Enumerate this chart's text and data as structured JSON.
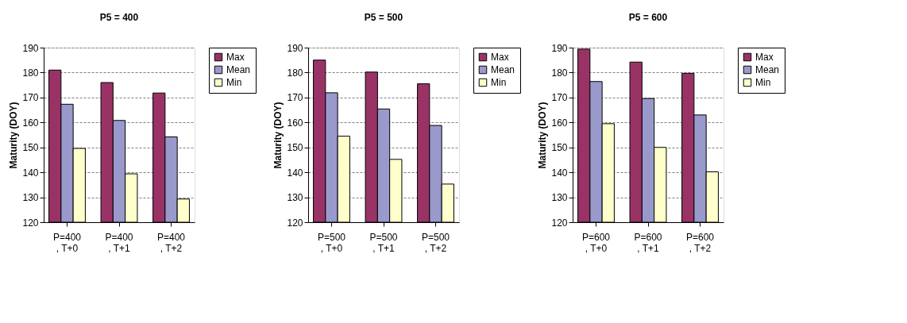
{
  "chart_data": [
    {
      "type": "bar",
      "title": "P5 = 400",
      "ylabel": "Maturity (DOY)",
      "categories": [
        "P=400 , T+0",
        "P=400 , T+1",
        "P=400 , T+2"
      ],
      "series": [
        {
          "name": "Max",
          "color": "#993366",
          "values": [
            181,
            176,
            171.8
          ]
        },
        {
          "name": "Mean",
          "color": "#9999cc",
          "values": [
            167.3,
            160.8,
            154.2
          ]
        },
        {
          "name": "Min",
          "color": "#ffffcc",
          "values": [
            149.6,
            139.4,
            129.3
          ]
        }
      ],
      "ylim": [
        120,
        190
      ],
      "yticks": [
        120,
        130,
        140,
        150,
        160,
        170,
        180,
        190
      ],
      "grid": "y",
      "legend": "right"
    },
    {
      "type": "bar",
      "title": "P5 = 500",
      "ylabel": "Maturity (DOY)",
      "categories": [
        "P=500 , T+0",
        "P=500 , T+1",
        "P=500 , T+2"
      ],
      "series": [
        {
          "name": "Max",
          "color": "#993366",
          "values": [
            185,
            180.2,
            175.5
          ]
        },
        {
          "name": "Mean",
          "color": "#9999cc",
          "values": [
            171.9,
            165.4,
            158.8
          ]
        },
        {
          "name": "Min",
          "color": "#ffffcc",
          "values": [
            154.5,
            145.2,
            135.3
          ]
        }
      ],
      "ylim": [
        120,
        190
      ],
      "yticks": [
        120,
        130,
        140,
        150,
        160,
        170,
        180,
        190
      ],
      "grid": "y",
      "legend": "right"
    },
    {
      "type": "bar",
      "title": "P5 = 600",
      "ylabel": "Maturity (DOY)",
      "categories": [
        "P=600 , T+0",
        "P=600 , T+1",
        "P=600 , T+2"
      ],
      "series": [
        {
          "name": "Max",
          "color": "#993366",
          "values": [
            189.4,
            184.2,
            179.7
          ]
        },
        {
          "name": "Mean",
          "color": "#9999cc",
          "values": [
            176.4,
            169.6,
            163
          ]
        },
        {
          "name": "Min",
          "color": "#ffffcc",
          "values": [
            159.5,
            150,
            140.2
          ]
        }
      ],
      "ylim": [
        120,
        190
      ],
      "yticks": [
        120,
        130,
        140,
        150,
        160,
        170,
        180,
        190
      ],
      "grid": "y",
      "legend": "right"
    }
  ]
}
